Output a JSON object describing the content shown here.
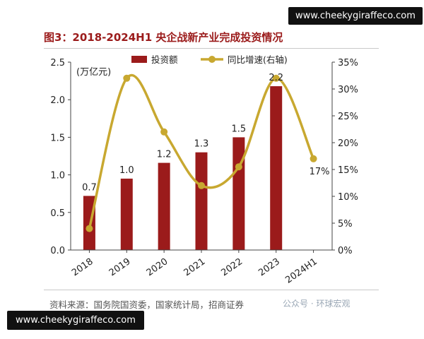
{
  "title": "图3：2018-2024H1 央企战新产业完成投资情况",
  "source": "资料来源：国务院国资委，国家统计局，招商证券",
  "watermark_top": "www.cheekygiraffeco.com",
  "watermark_bottom": "www.cheekygiraffeco.com",
  "overlay_text": "公众号 · 环球宏观",
  "colors": {
    "bar": "#9b1b1b",
    "line": "#c8a830",
    "title": "#9b1b1b"
  },
  "chart_data": {
    "type": "bar",
    "categories": [
      "2018",
      "2019",
      "2020",
      "2021",
      "2022",
      "2023",
      "2024H1"
    ],
    "unit_label": "(万亿元)",
    "legend": {
      "placement": "top",
      "entries": [
        "投资额",
        "同比增速(右轴)"
      ]
    },
    "series": [
      {
        "name": "投资额",
        "type": "bar",
        "axis": "left",
        "values": [
          0.72,
          0.95,
          1.16,
          1.3,
          1.5,
          2.18,
          null
        ],
        "labels": [
          "0.7",
          "1.0",
          "1.2",
          "1.3",
          "1.5",
          "2.2",
          ""
        ]
      },
      {
        "name": "同比增速(右轴)",
        "type": "line",
        "axis": "right",
        "values": [
          4,
          32,
          22,
          12,
          15.5,
          32,
          17
        ],
        "labels": [
          "",
          "",
          "",
          "",
          "",
          "",
          "17%"
        ]
      }
    ],
    "y_left": {
      "range": [
        0,
        2.5
      ],
      "ticks": [
        "0.0",
        "0.5",
        "1.0",
        "1.5",
        "2.0",
        "2.5"
      ]
    },
    "y_right": {
      "range": [
        0,
        35
      ],
      "ticks": [
        "0%",
        "5%",
        "10%",
        "15%",
        "20%",
        "25%",
        "30%",
        "35%"
      ]
    },
    "grid": false
  }
}
